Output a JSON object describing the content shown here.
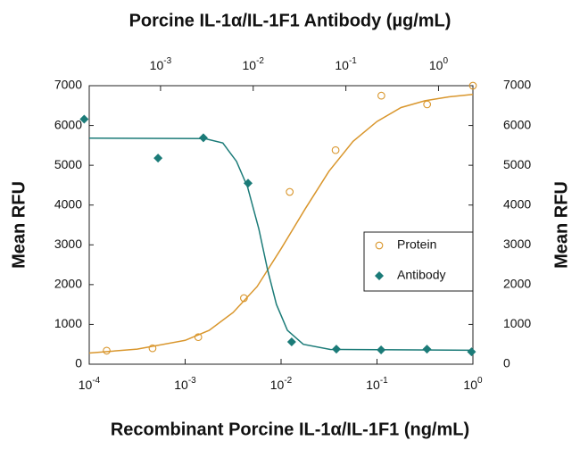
{
  "chart_data": {
    "type": "scatter",
    "title": "Porcine IL-1α/IL-1F1 Antibody (µg/mL)",
    "x_label": "Recombinant Porcine IL-1α/IL-1F1 (ng/mL)",
    "y_label": "Mean RFU",
    "y2_label": "Mean RFU",
    "x_log": true,
    "xlim": [
      0.0001,
      1
    ],
    "xticks": [
      {
        "value": 0.0001,
        "label": "10",
        "sup": "-4"
      },
      {
        "value": 0.001,
        "label": "10",
        "sup": "-3"
      },
      {
        "value": 0.01,
        "label": "10",
        "sup": "-2"
      },
      {
        "value": 0.1,
        "label": "10",
        "sup": "-1"
      },
      {
        "value": 1,
        "label": "10",
        "sup": "0"
      }
    ],
    "x2lim": [
      0.00017,
      2.35
    ],
    "x2ticks": [
      {
        "value": 0.001,
        "label": "10",
        "sup": "-3"
      },
      {
        "value": 0.01,
        "label": "10",
        "sup": "-2"
      },
      {
        "value": 0.1,
        "label": "10",
        "sup": "-1"
      },
      {
        "value": 1,
        "label": "10",
        "sup": "0"
      }
    ],
    "ylim": [
      0,
      7000
    ],
    "yticks": [
      0,
      1000,
      2000,
      3000,
      4000,
      5000,
      6000,
      7000
    ],
    "y2lim": [
      0,
      7000
    ],
    "y2ticks": [
      0,
      1000,
      2000,
      3000,
      4000,
      5000,
      6000,
      7000
    ],
    "legend": "right",
    "series": [
      {
        "name": "Protein",
        "color": "#d9962c",
        "marker": "circle",
        "xaxis": "x",
        "x": [
          0.000152,
          0.000457,
          0.00137,
          0.0041,
          0.0123,
          0.037,
          0.111,
          0.333,
          1
        ],
        "values": [
          340,
          400,
          680,
          1660,
          4330,
          5380,
          6750,
          6530,
          7000
        ],
        "curve_x": [
          0.0001,
          0.000316,
          0.001,
          0.00178,
          0.00316,
          0.00562,
          0.01,
          0.0178,
          0.0316,
          0.0562,
          0.1,
          0.178,
          0.316,
          0.562,
          1
        ],
        "curve_values": [
          280,
          380,
          600,
          850,
          1300,
          1950,
          2900,
          3900,
          4850,
          5600,
          6100,
          6450,
          6620,
          6720,
          6780
        ]
      },
      {
        "name": "Antibody",
        "color": "#1b7b78",
        "marker": "diamond",
        "xaxis": "x2",
        "x": [
          0.00015,
          0.00094,
          0.0029,
          0.0088,
          0.026,
          0.079,
          0.24,
          0.75,
          2.27
        ],
        "values": [
          6160,
          5180,
          5690,
          4550,
          560,
          380,
          360,
          380,
          310
        ],
        "curve_x": [
          0.00017,
          0.003,
          0.0047,
          0.0066,
          0.0087,
          0.0115,
          0.0142,
          0.0178,
          0.0234,
          0.0347,
          0.068,
          2.35
        ],
        "curve_values": [
          5680,
          5670,
          5560,
          5100,
          4450,
          3400,
          2400,
          1500,
          850,
          500,
          370,
          350
        ]
      }
    ]
  }
}
